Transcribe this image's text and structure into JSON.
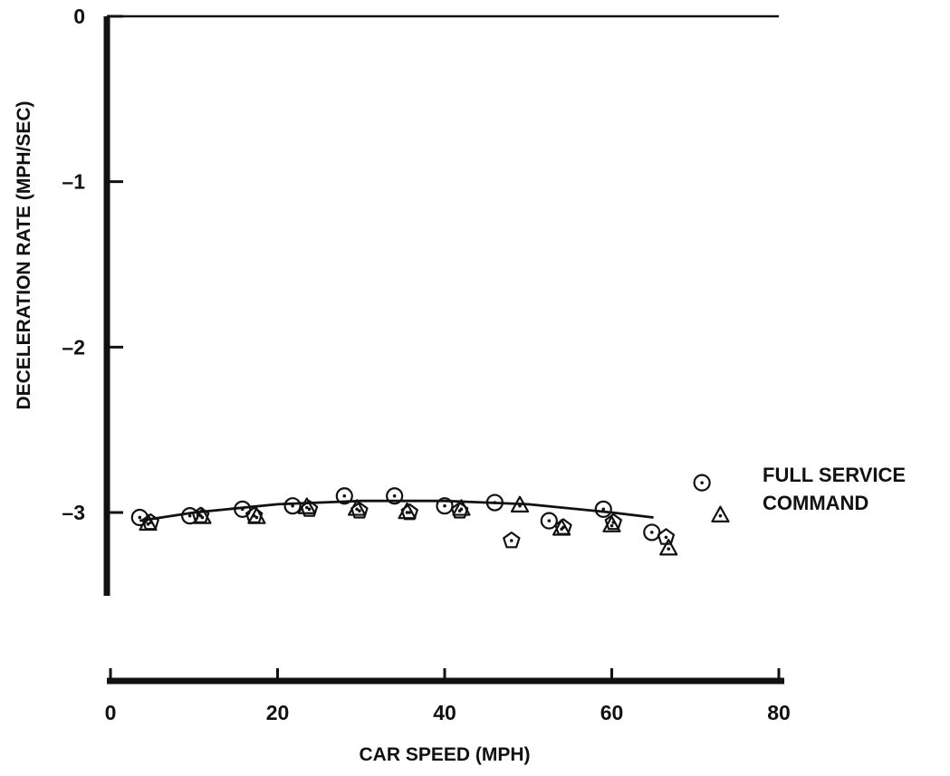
{
  "chart_data": {
    "type": "scatter",
    "title": "",
    "xlabel": "CAR SPEED (MPH)",
    "ylabel": "DECELERATION RATE (MPH/SEC)",
    "xlim": [
      0,
      80
    ],
    "ylim": [
      -3.5,
      0
    ],
    "x_ticks": [
      "0",
      "20",
      "40",
      "60",
      "80"
    ],
    "y_ticks": [
      "0",
      "–1",
      "–2",
      "–3"
    ],
    "y_tick_values": [
      0,
      -1,
      -2,
      -3
    ],
    "x_tick_values": [
      0,
      20,
      40,
      60,
      80
    ],
    "grid": false,
    "annotation": [
      "FULL SERVICE",
      "COMMAND"
    ],
    "marker_styles": [
      "circle-dot",
      "triangle-dot",
      "pentagon-dot"
    ],
    "series": [
      {
        "marker": "circle-dot",
        "x": [
          3.5,
          9.5,
          15.8,
          21.8,
          28,
          34,
          40,
          46,
          52.5,
          59,
          64.8,
          70.8
        ],
        "y": [
          -3.03,
          -3.02,
          -2.98,
          -2.96,
          -2.9,
          -2.9,
          -2.96,
          -2.94,
          -3.05,
          -2.98,
          -3.12,
          -2.82
        ]
      },
      {
        "marker": "triangle-dot",
        "x": [
          4.5,
          11,
          17.5,
          23.5,
          29.5,
          35.5,
          42,
          49,
          54,
          60,
          66.8,
          73
        ],
        "y": [
          -3.07,
          -3.03,
          -3.03,
          -2.97,
          -2.98,
          -3.0,
          -2.98,
          -2.96,
          -3.1,
          -3.08,
          -3.22,
          -3.02
        ]
      },
      {
        "marker": "pentagon-dot",
        "x": [
          4.8,
          10.8,
          17.2,
          23.8,
          29.8,
          35.8,
          41.8,
          48,
          54.2,
          60.2,
          66.5
        ],
        "y": [
          -3.06,
          -3.02,
          -3.02,
          -2.98,
          -2.99,
          -3.0,
          -2.99,
          -3.17,
          -3.09,
          -3.06,
          -3.15
        ]
      }
    ],
    "fit_curve": {
      "x": [
        3.5,
        10,
        20,
        30,
        40,
        50,
        60,
        65
      ],
      "y": [
        -3.05,
        -3.0,
        -2.95,
        -2.93,
        -2.93,
        -2.95,
        -3.0,
        -3.03
      ]
    }
  }
}
